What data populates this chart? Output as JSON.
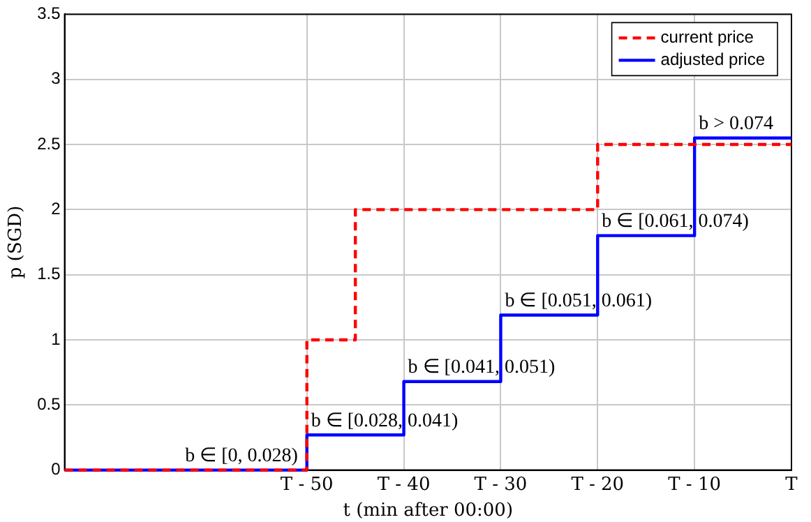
{
  "chart_data": {
    "type": "step",
    "xlabel": "t (min after 00:00)",
    "ylabel": "p (SGD)",
    "xlim": [
      -75,
      0
    ],
    "xticks": [
      {
        "value": -50,
        "label": "T - 50"
      },
      {
        "value": -40,
        "label": "T - 40"
      },
      {
        "value": -30,
        "label": "T - 30"
      },
      {
        "value": -20,
        "label": "T - 20"
      },
      {
        "value": -10,
        "label": "T - 10"
      },
      {
        "value": 0,
        "label": "T"
      }
    ],
    "ylim": [
      0,
      3.5
    ],
    "yticks": [
      0,
      0.5,
      1,
      1.5,
      2,
      2.5,
      3,
      3.5
    ],
    "grid": true,
    "legend": "top right",
    "marker": "none",
    "series": [
      {
        "name": "current price",
        "color": "#ff0000",
        "line_style": "dashed",
        "x": [
          -75,
          -50,
          -45,
          -20,
          0
        ],
        "values": [
          0,
          1,
          2,
          2.5,
          2.5
        ]
      },
      {
        "name": "adjusted price",
        "color": "#0000ff",
        "line_style": "solid",
        "x": [
          -75,
          -50,
          -40,
          -30,
          -20,
          -10,
          0
        ],
        "values": [
          0,
          0.27,
          0.68,
          1.19,
          1.8,
          2.55,
          2.55
        ]
      }
    ],
    "annotations": [
      {
        "text": "b ∈ [0, 0.028)",
        "x": -63,
        "y": 0
      },
      {
        "text": "b ∈ [0.028, 0.041)",
        "x": -50,
        "y": 0.27
      },
      {
        "text": "b ∈ [0.041, 0.051)",
        "x": -40,
        "y": 0.68
      },
      {
        "text": "b ∈ [0.051, 0.061)",
        "x": -30,
        "y": 1.19
      },
      {
        "text": "b ∈ [0.061, 0.074)",
        "x": -20,
        "y": 1.8
      },
      {
        "text": "b > 0.074",
        "x": -10,
        "y": 2.55
      }
    ]
  }
}
